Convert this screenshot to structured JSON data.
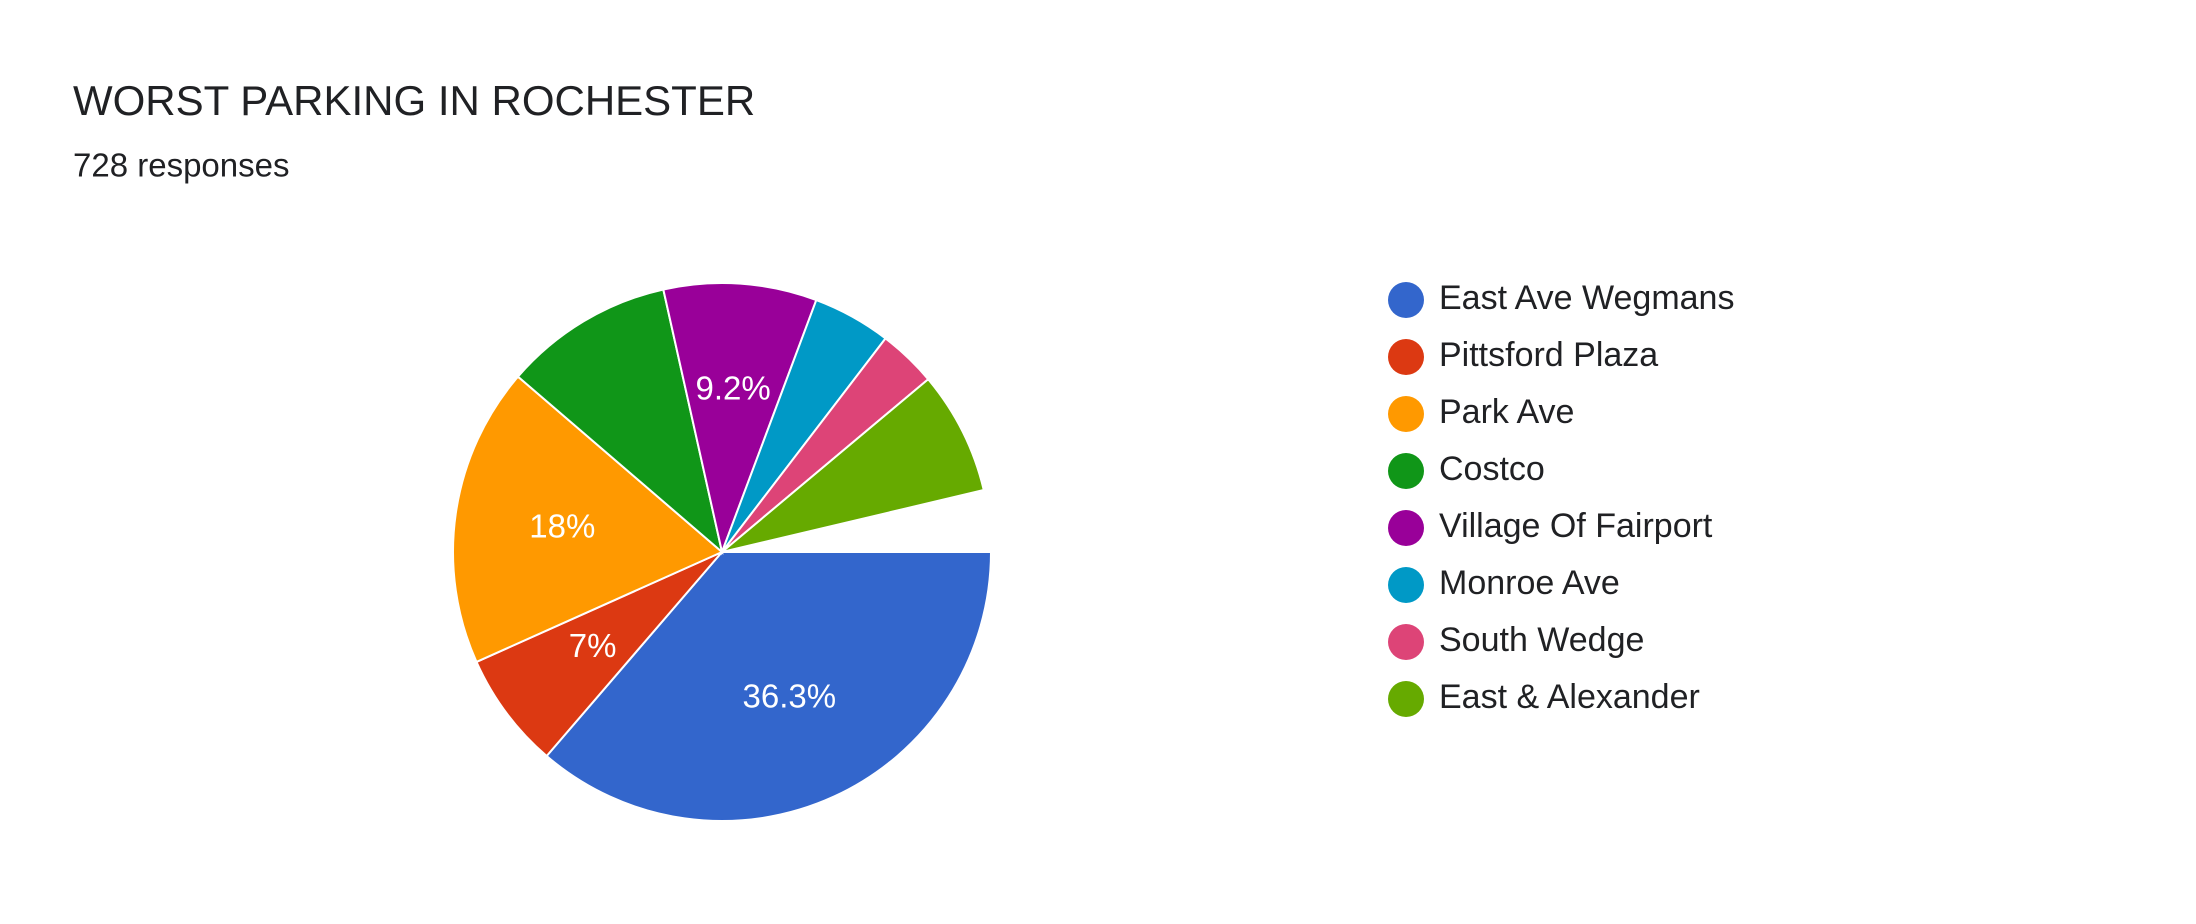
{
  "chart_data": {
    "type": "pie",
    "title": "WORST PARKING IN ROCHESTER",
    "subtitle": "728 responses",
    "categories": [
      "East Ave Wegmans",
      "Pittsford Plaza",
      "Park Ave",
      "Costco",
      "Village Of Fairport",
      "Monroe Ave",
      "South Wedge",
      "East & Alexander"
    ],
    "values": [
      36.3,
      7,
      18,
      10.2,
      9.2,
      4.7,
      3.5,
      7.4
    ],
    "value_labels": [
      "36.3%",
      "7%",
      "18%",
      null,
      "9.2%",
      null,
      null,
      null
    ],
    "colors": [
      "#3366cc",
      "#dc3912",
      "#ff9900",
      "#109618",
      "#990099",
      "#0099c6",
      "#dd4477",
      "#66aa00"
    ],
    "legend": "right"
  }
}
